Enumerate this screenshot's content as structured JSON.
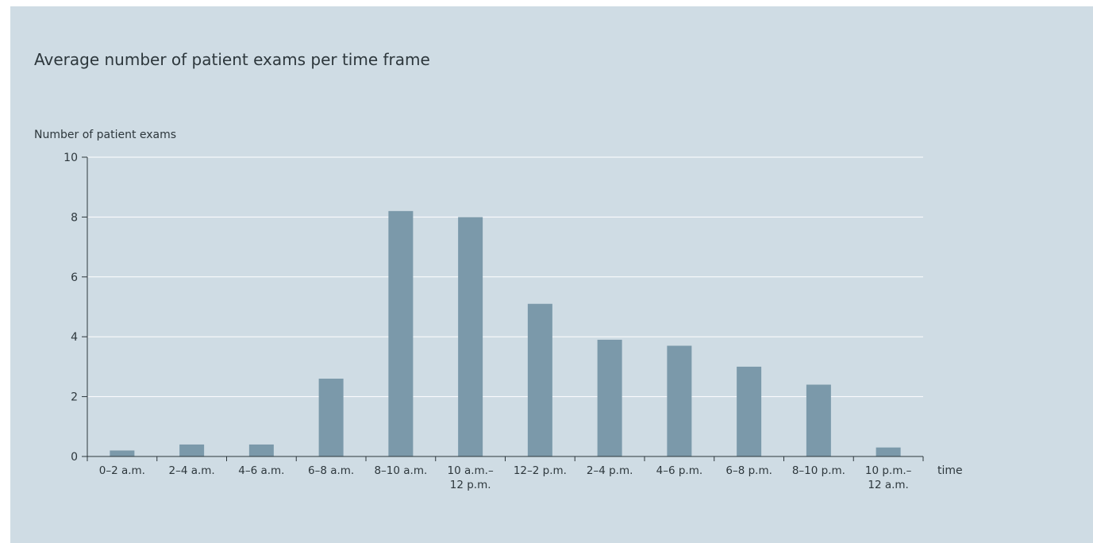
{
  "chart_data": {
    "type": "bar",
    "title": "Average number of patient exams per time frame",
    "ylabel": "Number of patient exams",
    "xlabel": "time",
    "categories": [
      [
        "0–2 a.m."
      ],
      [
        "2–4 a.m."
      ],
      [
        "4–6 a.m."
      ],
      [
        "6–8 a.m."
      ],
      [
        "8–10 a.m."
      ],
      [
        "10 a.m.–",
        "12 p.m."
      ],
      [
        "12–2 p.m."
      ],
      [
        "2–4 p.m."
      ],
      [
        "4–6 p.m."
      ],
      [
        "6–8 p.m."
      ],
      [
        "8–10 p.m."
      ],
      [
        "10 p.m.–",
        "12 a.m."
      ]
    ],
    "values": [
      0.2,
      0.4,
      0.4,
      2.6,
      8.2,
      8.0,
      5.1,
      3.9,
      3.7,
      3.0,
      2.4,
      0.3
    ],
    "ylim": [
      0,
      10
    ],
    "yticks": [
      0,
      2,
      4,
      6,
      8,
      10
    ],
    "grid": true,
    "colors": {
      "bar": "#7b99aa",
      "axis": "#2d373c",
      "grid": "#ffffff",
      "background": "#cfdce4"
    }
  }
}
